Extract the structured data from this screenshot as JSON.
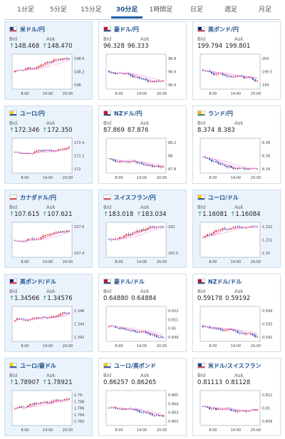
{
  "tabs": [
    "1分足",
    "5分足",
    "15分足",
    "30分足",
    "1時間足",
    "日足",
    "週足",
    "月足"
  ],
  "active_tab_index": 3,
  "x_ticks": [
    "8:00",
    "14:00",
    "20:00"
  ],
  "cards": [
    {
      "pair": "米ドル/円",
      "flag": [
        "#b22234",
        "#1c3f94"
      ],
      "bid_label": "Bid",
      "ask_label": "Ask",
      "bid": "148.468",
      "ask": "148.470",
      "up": true,
      "y_ticks": [
        "148.4",
        "148.2",
        "148"
      ],
      "highlight": true
    },
    {
      "pair": "豪ドル/円",
      "flag": [
        "#012169",
        "#c8102e"
      ],
      "bid_label": "Bid",
      "ask_label": "Ask",
      "bid": "96.328",
      "ask": "96.333",
      "up": false,
      "y_ticks": [
        "96.8",
        "96.6",
        "96.4"
      ],
      "highlight": false
    },
    {
      "pair": "英ポンド/円",
      "flag": [
        "#c8102e",
        "#012169"
      ],
      "bid_label": "Bid",
      "ask_label": "Ask",
      "bid": "199.794",
      "ask": "199.801",
      "up": false,
      "y_ticks": [
        "200",
        "199.5",
        "199"
      ],
      "highlight": false
    },
    {
      "pair": "ユーロ/円",
      "flag": [
        "#003399",
        "#ffcc00"
      ],
      "bid_label": "Bid",
      "ask_label": "Ask",
      "bid": "172.346",
      "ask": "172.350",
      "up": true,
      "y_ticks": [
        "172.4",
        "172.2",
        "172"
      ],
      "highlight": true
    },
    {
      "pair": "NZドル/円",
      "flag": [
        "#012169",
        "#c8102e"
      ],
      "bid_label": "Bid",
      "ask_label": "Ask",
      "bid": "87.869",
      "ask": "87.876",
      "up": false,
      "y_ticks": [
        "88.2",
        "88",
        "87.8"
      ],
      "highlight": false
    },
    {
      "pair": "ランド/円",
      "flag": [
        "#007a4d",
        "#ffb612"
      ],
      "bid_label": "Bid",
      "ask_label": "Ask",
      "bid": "8.374",
      "ask": "8.383",
      "up": false,
      "y_ticks": [
        "8.38",
        "8.36",
        "8.34"
      ],
      "highlight": false
    },
    {
      "pair": "カナダドル/円",
      "flag": [
        "#d52b1e",
        "#ffffff"
      ],
      "bid_label": "Bid",
      "ask_label": "Ask",
      "bid": "107.615",
      "ask": "107.621",
      "up": true,
      "y_ticks": [
        "107.6",
        "107.4"
      ],
      "highlight": true
    },
    {
      "pair": "スイスフラン/円",
      "flag": [
        "#d52b1e",
        "#ffffff"
      ],
      "bid_label": "Bid",
      "ask_label": "Ask",
      "bid": "183.018",
      "ask": "183.034",
      "up": true,
      "y_ticks": [
        "183",
        "182.5"
      ],
      "highlight": true
    },
    {
      "pair": "ユーロ/ドル",
      "flag": [
        "#003399",
        "#ffcc00"
      ],
      "bid_label": "Bid",
      "ask_label": "Ask",
      "bid": "1.16081",
      "ask": "1.16084",
      "up": true,
      "y_ticks": [
        "1.152",
        "1.151",
        "1.15"
      ],
      "highlight": true
    },
    {
      "pair": "英ポンド/ドル",
      "flag": [
        "#c8102e",
        "#012169"
      ],
      "bid_label": "Bid",
      "ask_label": "Ask",
      "bid": "1.34566",
      "ask": "1.34576",
      "up": true,
      "y_ticks": [
        "1.346",
        "1.344",
        "1.342"
      ],
      "highlight": true
    },
    {
      "pair": "豪ドル/ドル",
      "flag": [
        "#012169",
        "#c8102e"
      ],
      "bid_label": "Bid",
      "ask_label": "Ask",
      "bid": "0.64880",
      "ask": "0.64884",
      "up": false,
      "y_ticks": [
        "0.652",
        "0.651",
        "0.65",
        "0.649"
      ],
      "highlight": false
    },
    {
      "pair": "NZドル/ドル",
      "flag": [
        "#012169",
        "#c8102e"
      ],
      "bid_label": "Bid",
      "ask_label": "Ask",
      "bid": "0.59178",
      "ask": "0.59192",
      "up": false,
      "y_ticks": [
        "0.594",
        "0.593",
        "0.592"
      ],
      "highlight": false
    },
    {
      "pair": "ユーロ/豪ドル",
      "flag": [
        "#003399",
        "#ffcc00"
      ],
      "bid_label": "Bid",
      "ask_label": "Ask",
      "bid": "1.78907",
      "ask": "1.78921",
      "up": true,
      "y_ticks": [
        "1.79",
        "1.788",
        "1.786",
        "1.784",
        "1.782"
      ],
      "highlight": true
    },
    {
      "pair": "ユーロ/英ポンド",
      "flag": [
        "#003399",
        "#ffcc00"
      ],
      "bid_label": "Bid",
      "ask_label": "Ask",
      "bid": "0.86257",
      "ask": "0.86265",
      "up": false,
      "y_ticks": [
        "0.865",
        "0.864",
        "0.863",
        "0.862"
      ],
      "highlight": false
    },
    {
      "pair": "米ドル/スイスフラン",
      "flag": [
        "#b22234",
        "#1c3f94"
      ],
      "bid_label": "Bid",
      "ask_label": "Ask",
      "bid": "0.81113",
      "ask": "0.81128",
      "up": false,
      "y_ticks": [
        "0.812",
        "0.81",
        "0.808"
      ],
      "highlight": false
    }
  ]
}
